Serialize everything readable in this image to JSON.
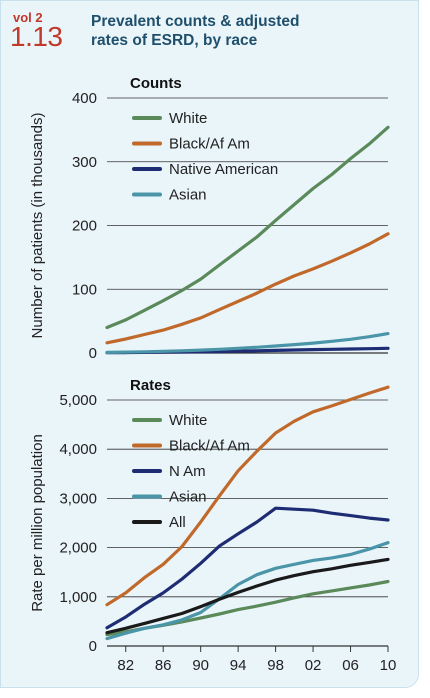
{
  "header": {
    "volume": "vol 2",
    "figure_number": "1.13",
    "title": "Prevalent counts & adjusted\nrates of ESRD, by race"
  },
  "colors": {
    "panel_background": "#eaf5fa",
    "accent_red": "#c0392b",
    "title_blue": "#1f4f6b"
  },
  "chart_data": [
    {
      "type": "line",
      "title": "Counts",
      "ylabel": "Number of patients (in thousands)",
      "ylim": [
        0,
        400
      ],
      "yticks": [
        0,
        100,
        200,
        300,
        400
      ],
      "ytick_labels": [
        "0",
        "100",
        "200",
        "300",
        "400"
      ],
      "xlim": [
        1980,
        2010
      ],
      "grid": "horizontal",
      "legend_position": "top-left",
      "x": [
        1980,
        1982,
        1984,
        1986,
        1988,
        1990,
        1992,
        1994,
        1996,
        1998,
        2000,
        2002,
        2004,
        2006,
        2008,
        2010
      ],
      "series": [
        {
          "name": "White",
          "color": "#5a8a5a",
          "values": [
            40,
            52,
            67,
            82,
            98,
            116,
            138,
            160,
            182,
            208,
            233,
            258,
            280,
            305,
            328,
            354
          ]
        },
        {
          "name": "Black/Af Am",
          "color": "#c0692b",
          "values": [
            16,
            22,
            29,
            36,
            45,
            55,
            68,
            81,
            94,
            108,
            121,
            132,
            144,
            157,
            171,
            187
          ]
        },
        {
          "name": "Native American",
          "color": "#1e2d73",
          "values": [
            0.5,
            0.7,
            0.9,
            1.2,
            1.5,
            1.9,
            2.4,
            2.9,
            3.5,
            4.1,
            4.7,
            5.3,
            5.8,
            6.3,
            6.8,
            7.4
          ]
        },
        {
          "name": "Asian",
          "color": "#4a95a8",
          "values": [
            1.0,
            1.4,
            1.9,
            2.6,
            3.4,
            4.5,
            5.8,
            7.3,
            9.0,
            11.0,
            13.2,
            15.6,
            18.3,
            21.5,
            25.5,
            30.5
          ]
        }
      ]
    },
    {
      "type": "line",
      "title": "Rates",
      "ylabel": "Rate per million population",
      "ylim": [
        0,
        5000
      ],
      "yticks": [
        0,
        1000,
        2000,
        3000,
        4000,
        5000
      ],
      "ytick_labels": [
        "0",
        "1,000",
        "2,000",
        "3,000",
        "4,000",
        "5,000"
      ],
      "xlim": [
        1980,
        2010
      ],
      "xticks": [
        1982,
        1986,
        1990,
        1994,
        1998,
        2002,
        2006,
        2010
      ],
      "xtick_labels": [
        "82",
        "86",
        "90",
        "94",
        "98",
        "02",
        "06",
        "10"
      ],
      "grid": "horizontal",
      "legend_position": "top-left",
      "x": [
        1980,
        1982,
        1984,
        1986,
        1988,
        1990,
        1992,
        1994,
        1996,
        1998,
        2000,
        2002,
        2004,
        2006,
        2008,
        2010
      ],
      "series": [
        {
          "name": "White",
          "color": "#5a8a5a",
          "values": [
            230,
            290,
            360,
            420,
            490,
            570,
            650,
            740,
            810,
            890,
            980,
            1060,
            1120,
            1180,
            1240,
            1310
          ]
        },
        {
          "name": "Black/Af Am",
          "color": "#c0692b",
          "values": [
            840,
            1080,
            1390,
            1660,
            2020,
            2520,
            3050,
            3560,
            3960,
            4330,
            4570,
            4760,
            4880,
            5010,
            5140,
            5260
          ]
        },
        {
          "name": "N Am",
          "color": "#1e2d73",
          "values": [
            370,
            590,
            850,
            1080,
            1360,
            1680,
            2030,
            2280,
            2520,
            2800,
            2780,
            2760,
            2700,
            2650,
            2600,
            2560
          ]
        },
        {
          "name": "Asian",
          "color": "#4a95a8",
          "values": [
            150,
            260,
            360,
            430,
            530,
            680,
            960,
            1250,
            1450,
            1580,
            1660,
            1740,
            1790,
            1860,
            1970,
            2100
          ]
        },
        {
          "name": "All",
          "color": "#1a1a1a",
          "values": [
            270,
            360,
            460,
            560,
            660,
            800,
            950,
            1090,
            1220,
            1340,
            1430,
            1510,
            1570,
            1640,
            1700,
            1760
          ]
        }
      ]
    }
  ]
}
